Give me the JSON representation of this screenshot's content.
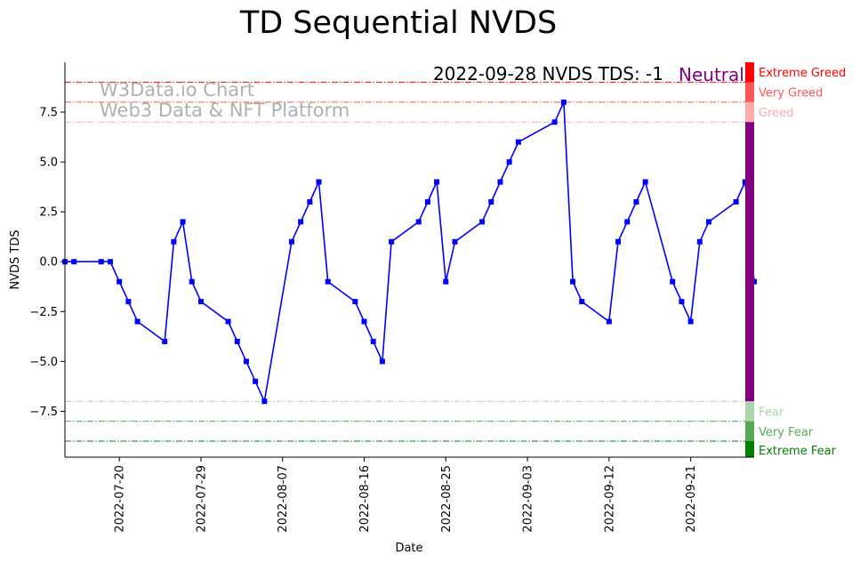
{
  "chart_data": {
    "type": "line",
    "title": "TD Sequential NVDS",
    "xlabel": "Date",
    "ylabel": "NVDS TDS",
    "xlim": [
      "2022-07-14",
      "2022-09-28"
    ],
    "ylim": [
      -9.8,
      10.0
    ],
    "x_ticks": [
      "2022-07-20",
      "2022-07-29",
      "2022-08-07",
      "2022-08-16",
      "2022-08-25",
      "2022-09-03",
      "2022-09-12",
      "2022-09-21"
    ],
    "y_ticks": [
      -7.5,
      -5.0,
      -2.5,
      0.0,
      2.5,
      5.0,
      7.5
    ],
    "y_tick_labels": [
      "−7.5",
      "−5.0",
      "−2.5",
      "0.0",
      "2.5",
      "5.0",
      "7.5"
    ],
    "series": [
      {
        "name": "NVDS TDS",
        "color": "#0000ff",
        "marker": "square",
        "x": [
          "2022-07-14",
          "2022-07-15",
          "2022-07-18",
          "2022-07-19",
          "2022-07-20",
          "2022-07-21",
          "2022-07-22",
          "2022-07-25",
          "2022-07-26",
          "2022-07-27",
          "2022-07-28",
          "2022-07-29",
          "2022-08-01",
          "2022-08-02",
          "2022-08-03",
          "2022-08-04",
          "2022-08-05",
          "2022-08-08",
          "2022-08-09",
          "2022-08-10",
          "2022-08-11",
          "2022-08-12",
          "2022-08-15",
          "2022-08-16",
          "2022-08-17",
          "2022-08-18",
          "2022-08-19",
          "2022-08-22",
          "2022-08-23",
          "2022-08-24",
          "2022-08-25",
          "2022-08-26",
          "2022-08-29",
          "2022-08-30",
          "2022-08-31",
          "2022-09-01",
          "2022-09-02",
          "2022-09-06",
          "2022-09-07",
          "2022-09-08",
          "2022-09-09",
          "2022-09-12",
          "2022-09-13",
          "2022-09-14",
          "2022-09-15",
          "2022-09-16",
          "2022-09-19",
          "2022-09-20",
          "2022-09-21",
          "2022-09-22",
          "2022-09-23",
          "2022-09-26",
          "2022-09-27",
          "2022-09-28"
        ],
        "values": [
          0,
          0,
          0,
          0,
          -1,
          -2,
          -3,
          -4,
          1,
          2,
          -1,
          -2,
          -3,
          -4,
          -5,
          -6,
          -7,
          1,
          2,
          3,
          4,
          -1,
          -2,
          -3,
          -4,
          -5,
          1,
          2,
          3,
          4,
          -1,
          1,
          2,
          3,
          4,
          5,
          6,
          7,
          8,
          -1,
          -2,
          -3,
          1,
          2,
          3,
          4,
          -1,
          -2,
          -3,
          1,
          2,
          3,
          4,
          -1
        ]
      }
    ],
    "thresholds": [
      {
        "label": "Extreme Greed",
        "value": 9,
        "color": "#ff0000"
      },
      {
        "label": "Very Greed",
        "value": 8,
        "color": "#ff5555"
      },
      {
        "label": "Greed",
        "value": 7,
        "color": "#ffaaaa"
      },
      {
        "label": "Fear",
        "value": -7,
        "color": "#aad4aa"
      },
      {
        "label": "Very Fear",
        "value": -8,
        "color": "#55aa55"
      },
      {
        "label": "Extreme Fear",
        "value": -9,
        "color": "#008000"
      }
    ],
    "side_bar_segments": [
      {
        "from": 9,
        "to": 10.0,
        "color": "#ff0000"
      },
      {
        "from": 8,
        "to": 9,
        "color": "#ff5555"
      },
      {
        "from": 7,
        "to": 8,
        "color": "#ffaaaa"
      },
      {
        "from": -7,
        "to": 7,
        "color": "#800080"
      },
      {
        "from": -8,
        "to": -7,
        "color": "#aad4aa"
      },
      {
        "from": -9,
        "to": -8,
        "color": "#55aa55"
      },
      {
        "from": -9.8,
        "to": -9,
        "color": "#008000"
      }
    ],
    "watermark": [
      "W3Data.io Chart",
      "Web3 Data & NFT Platform"
    ],
    "latest_text": "2022-09-28 NVDS TDS: -1",
    "latest_status": "Neutral",
    "latest_status_color": "#800080"
  }
}
